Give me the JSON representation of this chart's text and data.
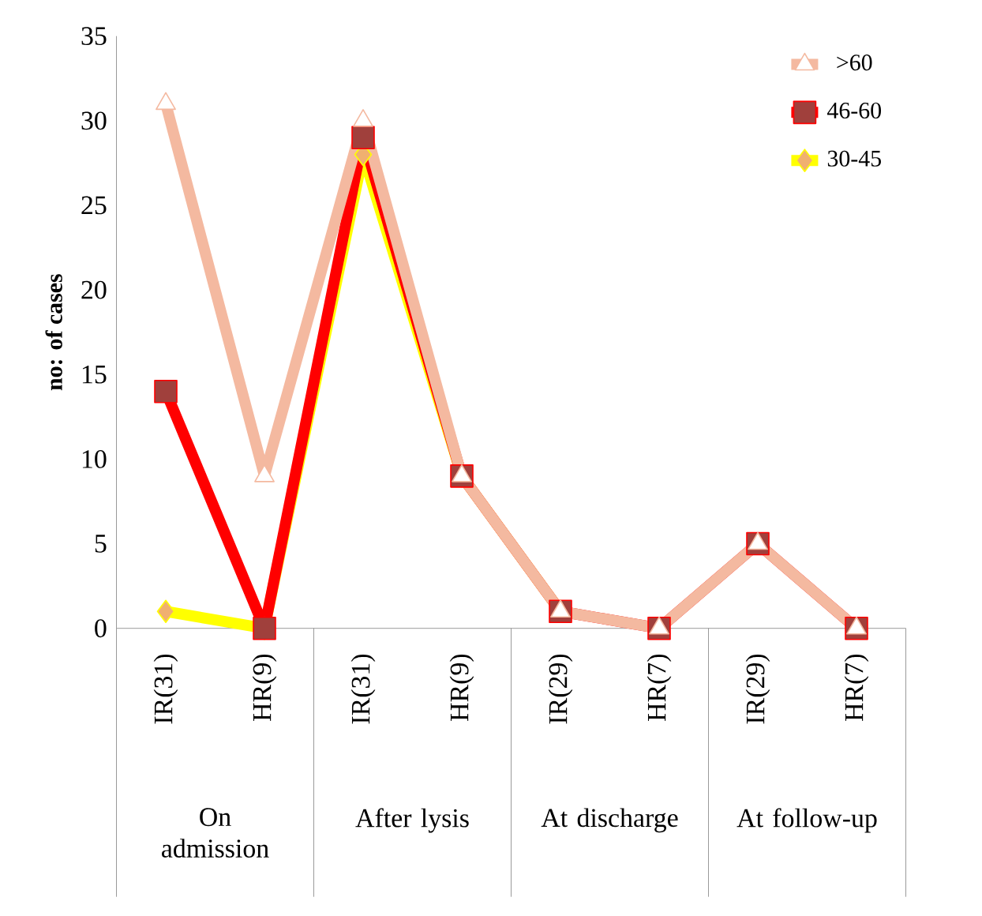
{
  "chart_data": {
    "type": "line",
    "ylabel": "no: of cases",
    "categories": [
      "IR(31)",
      "HR(9)",
      "IR(31)",
      "HR(9)",
      "IR(29)",
      "HR(7)",
      "IR(29)",
      "HR(7)"
    ],
    "series": [
      {
        "name": ">60",
        "color": "#f4b9a0",
        "marker": "triangle",
        "values": [
          31,
          9,
          30,
          9,
          1,
          0,
          5,
          0
        ]
      },
      {
        "name": "46-60",
        "color": "#ff0000",
        "marker": "square",
        "values": [
          14,
          0,
          29,
          9,
          1,
          0,
          5,
          0
        ]
      },
      {
        "name": "30-45",
        "color": "#ffff00",
        "marker": "diamond",
        "values": [
          1,
          0,
          28,
          9,
          1,
          null,
          null,
          null
        ]
      }
    ],
    "annotations": [
      "On admission",
      "After lysis",
      "At discharge",
      "At follow-up"
    ],
    "ylim": [
      0,
      35
    ],
    "yticks": [
      0,
      5,
      10,
      15,
      20,
      25,
      30,
      35
    ],
    "legend": "top right",
    "grid": false
  }
}
